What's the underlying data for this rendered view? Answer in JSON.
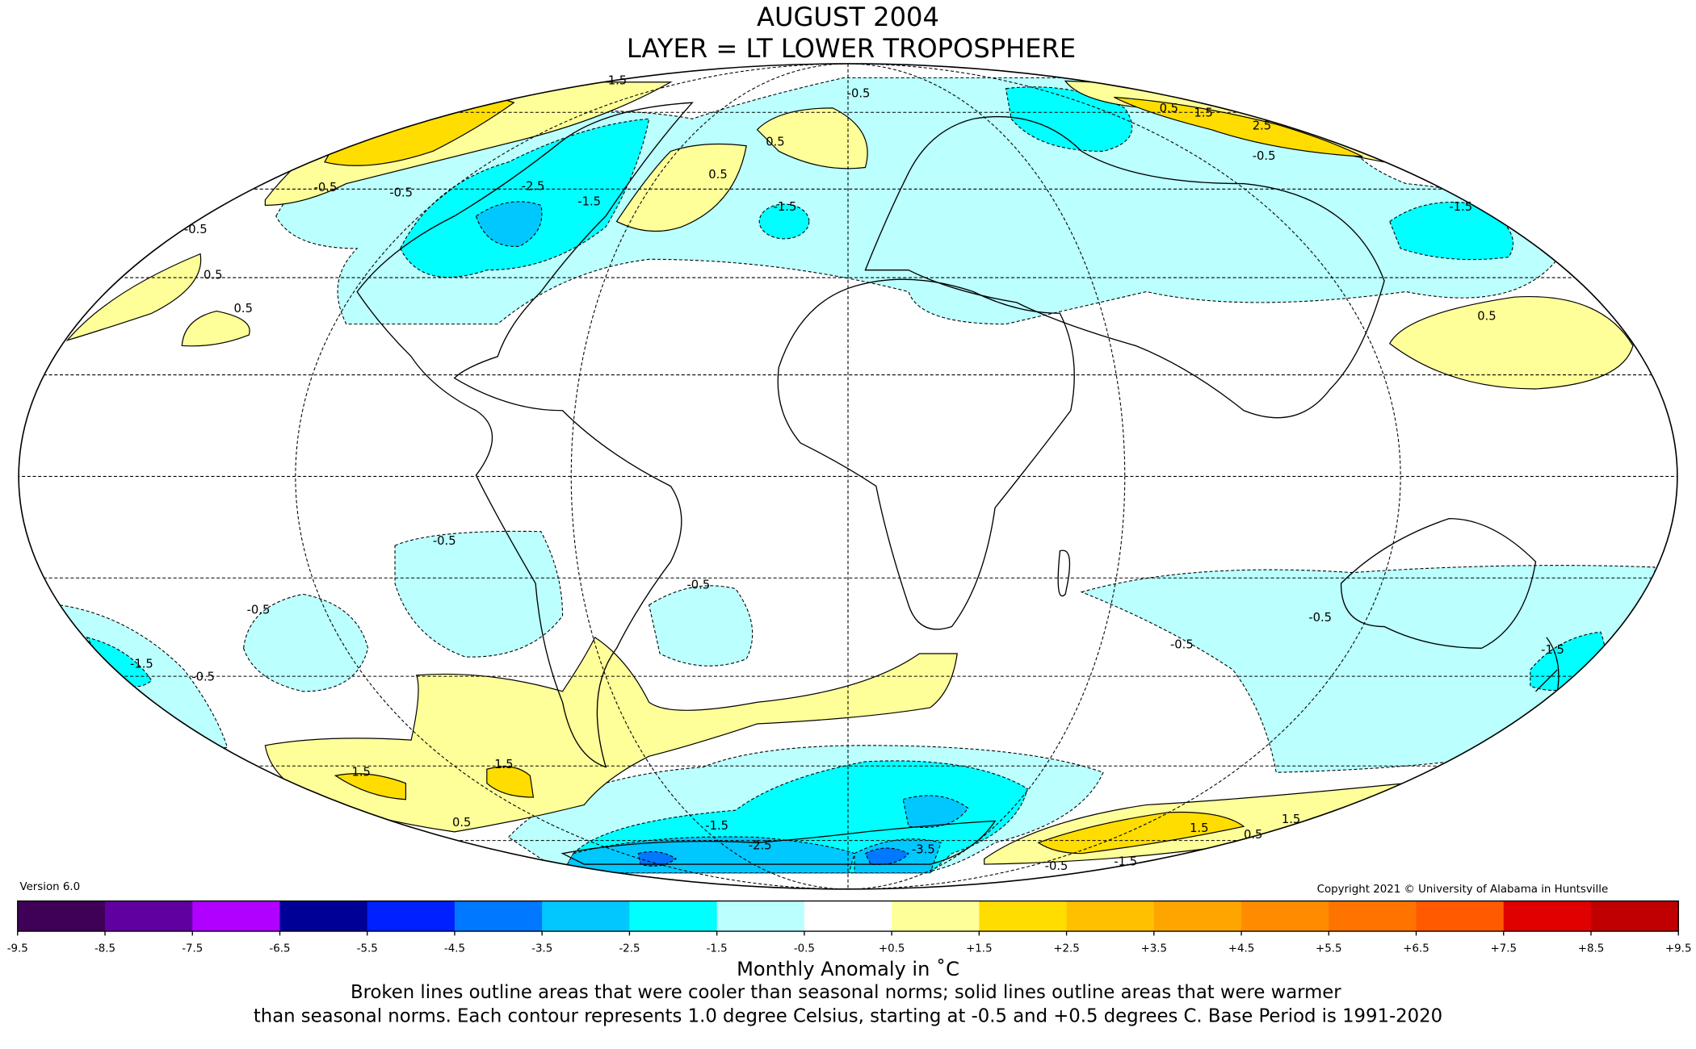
{
  "title": {
    "line1": "AUGUST 2004",
    "line2": "LAYER = LT LOWER TROPOSPHERE"
  },
  "version": "Version 6.0",
  "copyright": "Copyright 2021 © University of Alabama in Huntsville",
  "colorbar": {
    "label": "Monthly Anomaly in ˚C",
    "ticks": [
      "-9.5",
      "-8.5",
      "-7.5",
      "-6.5",
      "-5.5",
      "-4.5",
      "-3.5",
      "-2.5",
      "-1.5",
      "-0.5",
      "+0.5",
      "+1.5",
      "+2.5",
      "+3.5",
      "+4.5",
      "+5.5",
      "+6.5",
      "+7.5",
      "+8.5",
      "+9.5"
    ],
    "colors": [
      "#3f0058",
      "#6000a0",
      "#b000ff",
      "#000096",
      "#0020ff",
      "#0078ff",
      "#00c8ff",
      "#00ffff",
      "#bbffff",
      "#ffffff",
      "#ffff99",
      "#ffdd00",
      "#ffc000",
      "#ffa500",
      "#ff8c00",
      "#ff7300",
      "#ff5a00",
      "#e00000",
      "#c00000"
    ]
  },
  "caption": {
    "line1": "Broken lines outline areas that were cooler than seasonal norms; solid lines outline areas that were warmer",
    "line2": "than seasonal norms. Each contour represents 1.0 degree Celsius, starting at -0.5 and +0.5 degrees C. Base Period is 1991-2020"
  },
  "contour_labels": [
    "1.5",
    "-0.5",
    "0.5",
    "-2.5",
    "1.5",
    "0.5",
    "-0.5",
    "0.5",
    "-1.5",
    "0.5",
    "-0.5",
    "-1.5",
    "0.5",
    "-0.5",
    "-0.5",
    "-0.5",
    "-0.5",
    "-1.5",
    "-0.5",
    "-0.5",
    "-1.5",
    "1.5",
    "1.5",
    "0.5",
    "-1.5",
    "-2.5",
    "-3.5",
    "-0.5",
    "-1.5",
    "1.5",
    "0.5",
    "1.5",
    "-1.5",
    "0.5",
    "-0.5",
    "2.5",
    "-0.5"
  ]
}
